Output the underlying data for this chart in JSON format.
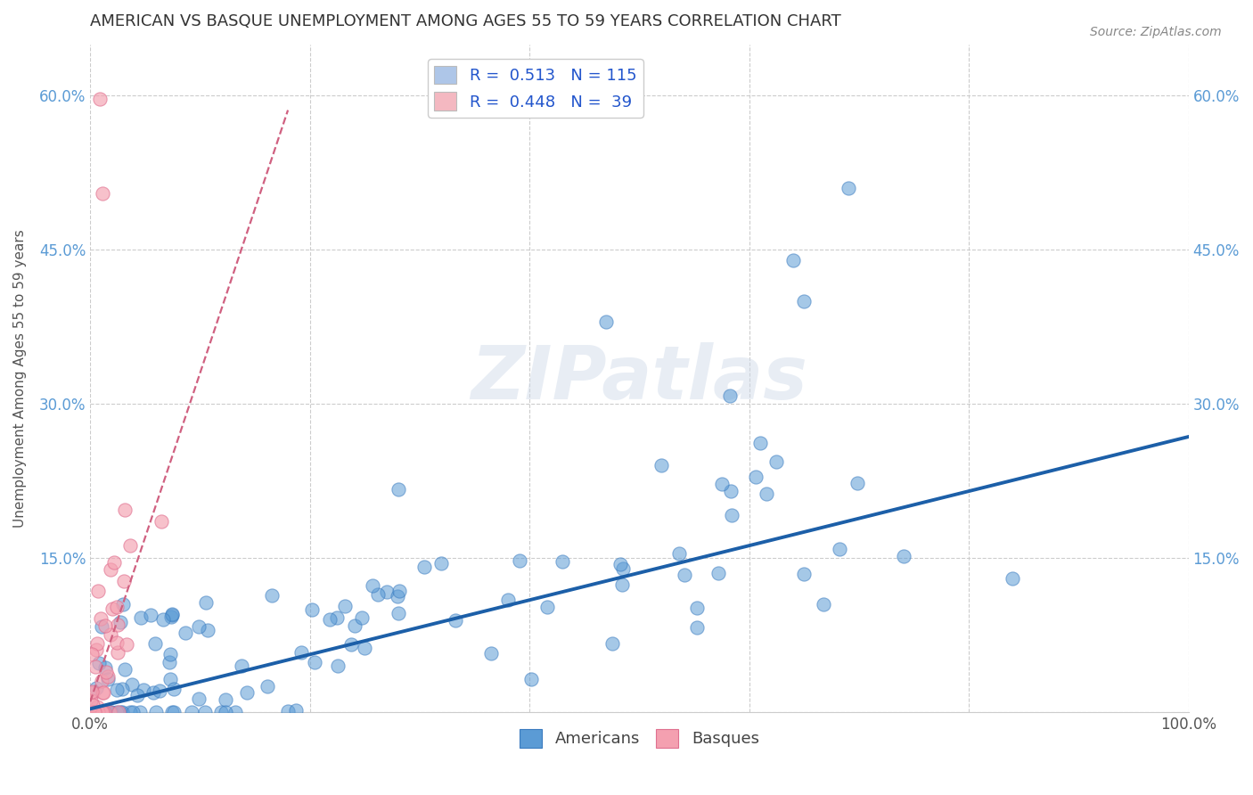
{
  "title": "AMERICAN VS BASQUE UNEMPLOYMENT AMONG AGES 55 TO 59 YEARS CORRELATION CHART",
  "source": "Source: ZipAtlas.com",
  "ylabel": "Unemployment Among Ages 55 to 59 years",
  "xlim": [
    0,
    1.0
  ],
  "ylim": [
    0,
    0.65
  ],
  "xticks": [
    0.0,
    0.2,
    0.4,
    0.6,
    0.8,
    1.0
  ],
  "xticklabels": [
    "0.0%",
    "",
    "",
    "",
    "",
    "100.0%"
  ],
  "yticks": [
    0.0,
    0.15,
    0.3,
    0.45,
    0.6
  ],
  "yticklabels": [
    "",
    "15.0%",
    "30.0%",
    "45.0%",
    "60.0%"
  ],
  "legend_top": [
    {
      "label": "R =  0.513   N = 115",
      "color": "#aec6e8"
    },
    {
      "label": "R =  0.448   N =  39",
      "color": "#f4b8c1"
    }
  ],
  "legend_bottom": [
    "Americans",
    "Basques"
  ],
  "watermark": "ZIPatlas",
  "blue_scatter_color": "#5b9bd5",
  "pink_scatter_color": "#f4a0b0",
  "blue_edge_color": "#3a7bbf",
  "pink_edge_color": "#e07090",
  "trend_blue": "#1c5fa8",
  "trend_pink": "#d06080",
  "seed": 42,
  "blue_trend_slope": 0.265,
  "blue_trend_intercept": 0.003,
  "pink_trend_slope": 3.2,
  "pink_trend_intercept": 0.01
}
